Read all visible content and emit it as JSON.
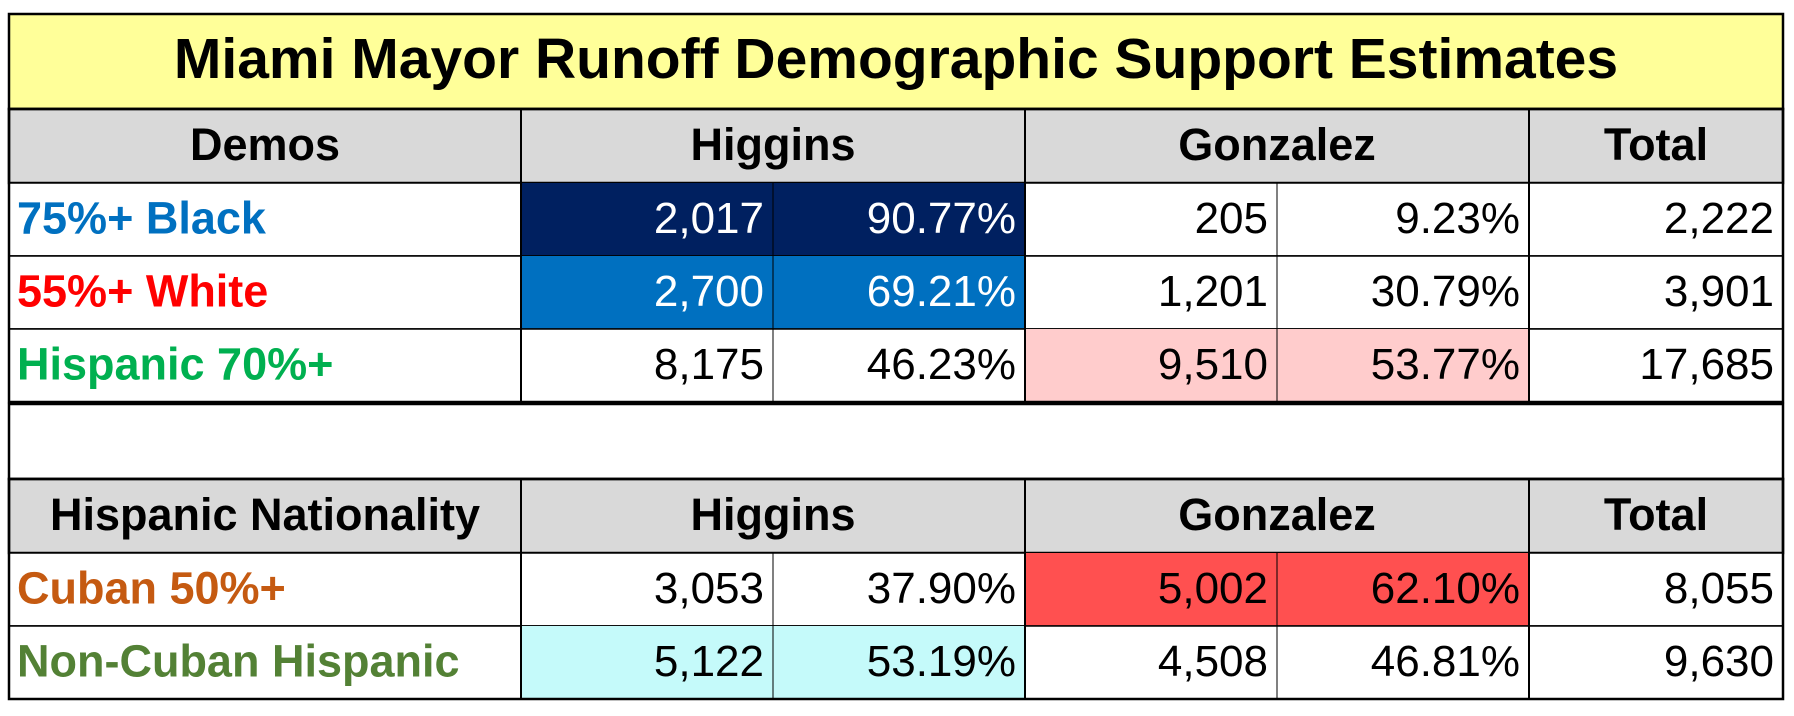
{
  "title": "Miami Mayor Runoff Demographic Support Estimates",
  "sections": [
    {
      "header": {
        "label": "Demos",
        "higgins": "Higgins",
        "gonzalez": "Gonzalez",
        "total": "Total"
      },
      "rows": [
        {
          "label": "75%+ Black",
          "label_color": "#0070c0",
          "cells": [
            "2,017",
            "90.77%",
            "205",
            "9.23%",
            "2,222"
          ],
          "cell_fills": [
            "#002060",
            "#002060",
            null,
            null,
            null
          ],
          "cell_text_color": "#ffffff"
        },
        {
          "label": "55%+ White",
          "label_color": "#ff0000",
          "cells": [
            "2,700",
            "69.21%",
            "1,201",
            "30.79%",
            "3,901"
          ],
          "cell_fills": [
            "#0070c0",
            "#0070c0",
            null,
            null,
            null
          ],
          "cell_text_color": "#ffffff"
        },
        {
          "label": "Hispanic 70%+",
          "label_color": "#00b050",
          "cells": [
            "8,175",
            "46.23%",
            "9,510",
            "53.77%",
            "17,685"
          ],
          "cell_fills": [
            null,
            null,
            "#ffcccc",
            "#ffcccc",
            null
          ],
          "cell_text_color": "#000000"
        }
      ]
    },
    {
      "header": {
        "label": "Hispanic Nationality",
        "higgins": "Higgins",
        "gonzalez": "Gonzalez",
        "total": "Total"
      },
      "rows": [
        {
          "label": "Cuban 50%+",
          "label_color": "#c55a11",
          "cells": [
            "3,053",
            "37.90%",
            "5,002",
            "62.10%",
            "8,055"
          ],
          "cell_fills": [
            null,
            null,
            "#ff5050",
            "#ff5050",
            null
          ],
          "cell_text_color": "#000000"
        },
        {
          "label": "Non-Cuban Hispanic",
          "label_color": "#538135",
          "cells": [
            "5,122",
            "53.19%",
            "4,508",
            "46.81%",
            "9,630"
          ],
          "cell_fills": [
            "#c5fafa",
            "#c5fafa",
            null,
            null,
            null
          ],
          "cell_text_color": "#000000"
        }
      ]
    }
  ]
}
